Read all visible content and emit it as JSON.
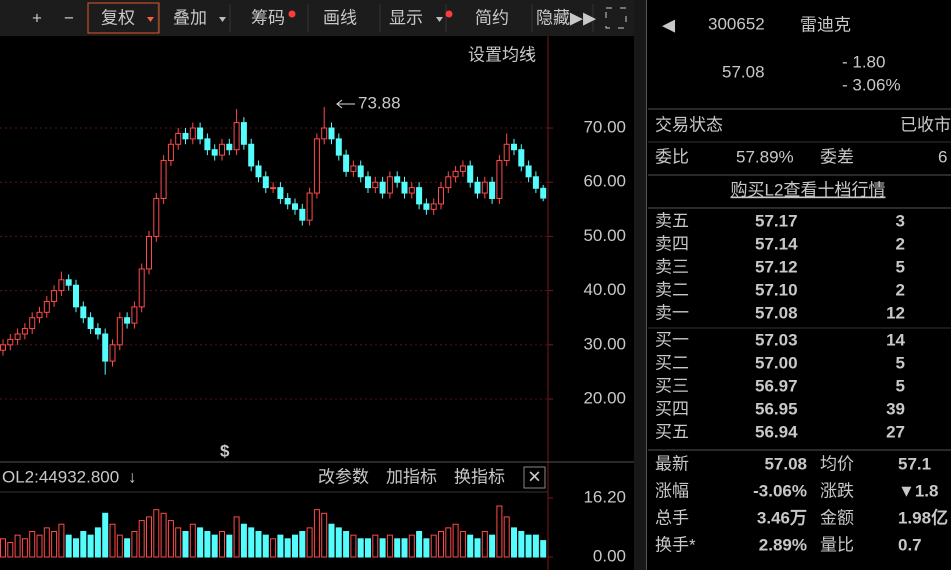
{
  "toolbar": {
    "items": [
      "+",
      "−",
      "复权",
      "叠加",
      "筹码",
      "画线",
      "显示",
      "简约",
      "隐藏"
    ]
  },
  "chart_data": [
    {
      "type": "candlestick",
      "ma_setting": "设置均线",
      "max_label": "73.88",
      "open": [
        29,
        30,
        31,
        32,
        33,
        35,
        36,
        38,
        40,
        42,
        41,
        37,
        35,
        33,
        32,
        27,
        30,
        35,
        34,
        37,
        44,
        50,
        57,
        64,
        67,
        69,
        68,
        70,
        68,
        66,
        65,
        67,
        66,
        71,
        67,
        63,
        61,
        59,
        59,
        57,
        56,
        55,
        53,
        58,
        68,
        70,
        68,
        65,
        62,
        63,
        61,
        59,
        60,
        58,
        61,
        60,
        58,
        59,
        56,
        55,
        56,
        59,
        61,
        62,
        63,
        60,
        58,
        60,
        57,
        64,
        67,
        66,
        63,
        61,
        58.88
      ],
      "high": [
        31,
        32,
        33,
        34,
        36,
        37,
        39,
        41,
        43.5,
        43,
        42,
        38,
        36,
        34,
        33,
        31,
        36,
        36,
        38,
        45,
        51,
        58,
        65,
        68,
        70,
        70,
        71,
        71,
        69,
        67,
        68,
        68,
        73.5,
        72,
        68,
        64,
        62,
        60,
        60,
        58,
        57,
        56,
        59,
        69,
        73.88,
        71,
        69,
        66,
        64,
        64,
        62,
        61,
        61,
        62,
        62,
        61,
        60,
        60,
        57,
        57,
        60,
        62,
        63,
        64,
        64,
        61,
        61,
        61,
        65,
        69,
        68,
        67,
        64,
        62,
        59.5
      ],
      "low": [
        28,
        29,
        30,
        31,
        32,
        34,
        35,
        37,
        39,
        40,
        36,
        34,
        32,
        31,
        24.5,
        26,
        29,
        33,
        33,
        36,
        43,
        49,
        56,
        63,
        66,
        67,
        67,
        67,
        65,
        64,
        64,
        65,
        65,
        66,
        62,
        60,
        58,
        58,
        56,
        55,
        54,
        52,
        52,
        57,
        67,
        67,
        64,
        61,
        61,
        60,
        58,
        58,
        57,
        57,
        59,
        57,
        57,
        55,
        54,
        54,
        55,
        58,
        60,
        61,
        59,
        57,
        57,
        56,
        56,
        63,
        65,
        62,
        60,
        58,
        56.5
      ],
      "close": [
        30,
        31,
        32,
        33,
        35,
        36,
        38,
        40,
        42,
        41,
        37,
        35,
        33,
        32,
        27,
        30,
        35,
        34,
        37,
        44,
        50,
        57,
        64,
        67,
        69,
        68,
        70,
        68,
        66,
        65,
        67,
        66,
        71,
        67,
        63,
        61,
        59,
        59,
        57,
        56,
        55,
        53,
        58,
        68,
        70,
        68,
        65,
        62,
        63,
        61,
        59,
        60,
        58,
        61,
        60,
        58,
        59,
        56,
        55,
        56,
        59,
        61,
        62,
        63,
        60,
        58,
        60,
        57,
        64,
        67,
        66,
        63,
        61,
        58.88,
        57.08
      ],
      "up_color": "#ff4a4a",
      "down_color": "#54fcfc",
      "ylim": [
        8.75,
        86.24
      ],
      "yticks": [
        {
          "value": 70,
          "label": "70.00"
        },
        {
          "value": 60,
          "label": "60.00"
        },
        {
          "value": 50,
          "label": "50.00"
        },
        {
          "value": 40,
          "label": "40.00"
        },
        {
          "value": 30,
          "label": "30.00"
        },
        {
          "value": 20,
          "label": "20.00"
        }
      ],
      "grid": true
    },
    {
      "type": "bar",
      "title": "OL2:44932.800",
      "buttons": [
        "改参数",
        "加指标",
        "换指标"
      ],
      "values": [
        5,
        4,
        6,
        5,
        7,
        6,
        8,
        7,
        9,
        6,
        5,
        7,
        6,
        8,
        12,
        9,
        6,
        5,
        7,
        10,
        11,
        13,
        12,
        10,
        8,
        7,
        9,
        8,
        7,
        6,
        7,
        6,
        11,
        9,
        8,
        7,
        6,
        5,
        6,
        5,
        6,
        7,
        8,
        13,
        12,
        9,
        8,
        7,
        6,
        5,
        5,
        6,
        5,
        6,
        5,
        5,
        6,
        7,
        5,
        6,
        7,
        8,
        9,
        7,
        6,
        5,
        7,
        6,
        14,
        11,
        8,
        7,
        6,
        6,
        4.5
      ],
      "ylim": [
        0,
        18.4
      ],
      "yticks": [
        {
          "value": 16.2,
          "label": "16.20"
        },
        {
          "value": 0,
          "label": "0.00"
        }
      ]
    }
  ],
  "quote": {
    "code": "300652",
    "name": "雷迪克",
    "price": "57.08",
    "change": "- 1.80",
    "change_pct": "- 3.06%",
    "status_label": "交易状态",
    "status": "已收市",
    "ratio_label": "委比",
    "ratio": "57.89%",
    "diff_label": "委差",
    "diff": "6",
    "l2_link": "购买L2查看十档行情",
    "asks": [
      {
        "label": "卖五",
        "price": "57.17",
        "volume": "3"
      },
      {
        "label": "卖四",
        "price": "57.14",
        "volume": "2"
      },
      {
        "label": "卖三",
        "price": "57.12",
        "volume": "5"
      },
      {
        "label": "卖二",
        "price": "57.10",
        "volume": "2"
      },
      {
        "label": "卖一",
        "price": "57.08",
        "volume": "12"
      }
    ],
    "bids": [
      {
        "label": "买一",
        "price": "57.03",
        "volume": "14"
      },
      {
        "label": "买二",
        "price": "57.00",
        "volume": "5"
      },
      {
        "label": "买三",
        "price": "56.97",
        "volume": "5"
      },
      {
        "label": "买四",
        "price": "56.95",
        "volume": "39"
      },
      {
        "label": "买五",
        "price": "56.94",
        "volume": "27"
      }
    ],
    "stats": [
      [
        "最新",
        "57.08",
        "均价",
        "57.1"
      ],
      [
        "涨幅",
        "-3.06%",
        "涨跌",
        "▼1.8"
      ],
      [
        "总手",
        "3.46万",
        "金额",
        "1.98亿"
      ],
      [
        "换手*",
        "2.89%",
        "量比",
        "0.7"
      ]
    ]
  }
}
